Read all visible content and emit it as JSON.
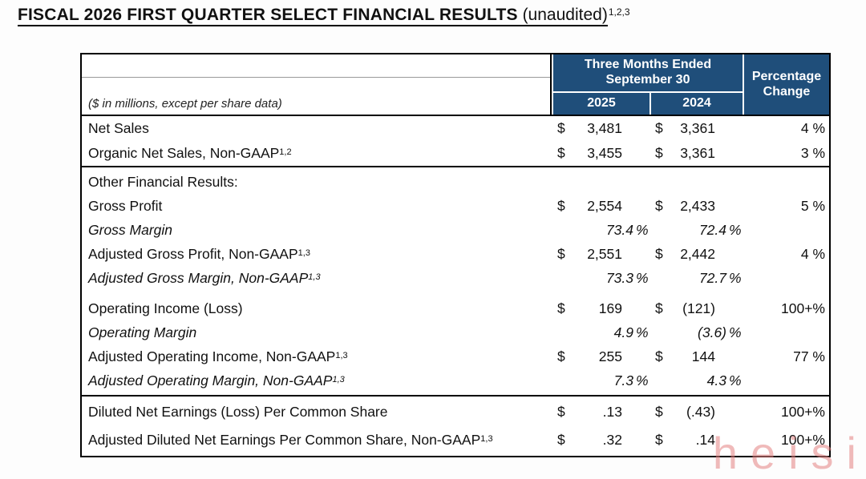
{
  "title": {
    "main": "FISCAL 2026 FIRST QUARTER SELECT FINANCIAL RESULTS",
    "suffix": " (unaudited)",
    "sup": "1,2,3"
  },
  "table": {
    "note": "($ in millions, except per share data)",
    "col_group_header": {
      "line1": "Three Months Ended",
      "line2": "September 30"
    },
    "year_cols": [
      "2025",
      "2024"
    ],
    "change_header": {
      "line1": "Percentage",
      "line2": "Change"
    },
    "header_bg": "#1F4E7A",
    "header_text_color": "#FFFFFF",
    "sections": [
      {
        "rows": [
          {
            "label": "Net Sales",
            "sup": "",
            "d1": "$",
            "v1": "3,481",
            "d2": "$",
            "v2": "3,361",
            "chg": "4 %"
          },
          {
            "label": "Organic Net Sales, Non-GAAP",
            "sup": "1,2",
            "d1": "$",
            "v1": "3,455",
            "d2": "$",
            "v2": "3,361",
            "chg": "3 %"
          }
        ]
      },
      {
        "rows": [
          {
            "label": "Other Financial Results:"
          },
          {
            "label": "Gross Profit",
            "d1": "$",
            "v1": "2,554",
            "d2": "$",
            "v2": "2,433",
            "chg": "5 %"
          },
          {
            "label": "Gross Margin",
            "italic": true,
            "margin": true,
            "v1": "73.4",
            "p1": "%",
            "v2": "72.4",
            "p2": "%"
          },
          {
            "label": "Adjusted Gross Profit, Non-GAAP",
            "sup": "1,3",
            "d1": "$",
            "v1": "2,551",
            "d2": "$",
            "v2": "2,442",
            "chg": "4 %"
          },
          {
            "label": "Adjusted Gross Margin, Non-GAAP",
            "sup": "1,3",
            "italic": true,
            "margin": true,
            "v1": "73.3",
            "p1": "%",
            "v2": "72.7",
            "p2": "%"
          },
          {
            "spacer": true
          },
          {
            "label": "Operating Income (Loss)",
            "d1": "$",
            "v1": "169",
            "d2": "$",
            "v2": "(121)",
            "chg": "100+%"
          },
          {
            "label": "Operating Margin",
            "italic": true,
            "margin": true,
            "v1": "4.9",
            "p1": "%",
            "v2": "(3.6)",
            "p2": "%"
          },
          {
            "label": "Adjusted Operating Income, Non-GAAP",
            "sup": "1,3",
            "d1": "$",
            "v1": "255",
            "d2": "$",
            "v2": "144",
            "chg": "77 %"
          },
          {
            "label": "Adjusted Operating Margin, Non-GAAP",
            "sup": "1,3",
            "italic": true,
            "margin": true,
            "v1": "7.3",
            "p1": "%",
            "v2": "4.3",
            "p2": "%"
          }
        ]
      },
      {
        "rows": [
          {
            "label": "Diluted Net Earnings (Loss) Per Common Share",
            "d1": "$",
            "v1": ".13",
            "d2": "$",
            "v2": "(.43)",
            "chg": "100+%"
          },
          {
            "label": "Adjusted Diluted Net Earnings Per Common Share, Non-GAAP",
            "sup": "1,3",
            "d1": "$",
            "v1": ".32",
            "d2": "$",
            "v2": ".14",
            "chg": "100+%"
          }
        ]
      }
    ]
  },
  "watermark": "heisi"
}
